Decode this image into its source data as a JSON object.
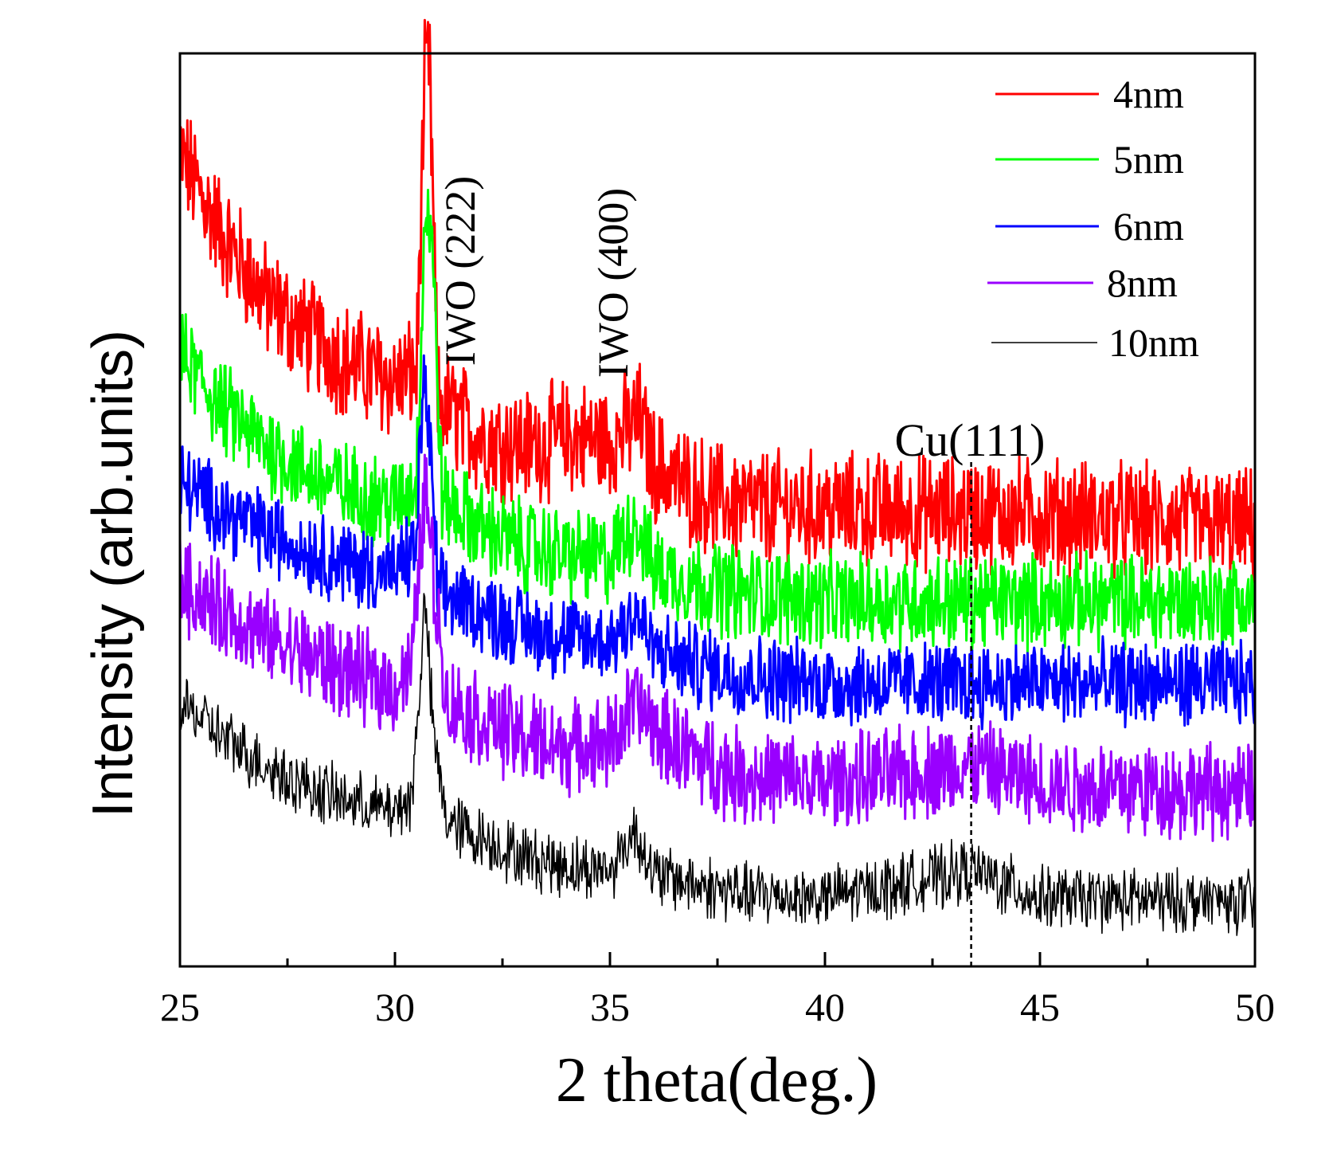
{
  "chart_data": {
    "type": "line",
    "title": "",
    "xlabel": "2 theta(deg.)",
    "ylabel": "Intensity (arb.units)",
    "xlim": [
      25,
      50
    ],
    "ylim": [
      0,
      10
    ],
    "x_ticks": [
      25,
      30,
      35,
      40,
      45,
      50
    ],
    "x_tick_labels": [
      "25",
      "30",
      "35",
      "40",
      "45",
      "50"
    ],
    "x_minor_ticks": [
      27.5,
      32.5,
      37.5,
      42.5,
      47.5
    ],
    "y_ticks_labeled": false,
    "grid": false,
    "legend_position": "top-right",
    "series": [
      {
        "name": "4nm",
        "color": "#ff0000",
        "baseline": 5.0,
        "noise": 0.55,
        "points": [
          [
            25,
            8.9
          ],
          [
            26,
            8.0
          ],
          [
            27,
            7.3
          ],
          [
            28,
            6.9
          ],
          [
            29,
            6.6
          ],
          [
            30,
            6.4
          ],
          [
            30.5,
            6.5
          ],
          [
            30.7,
            9.8
          ],
          [
            30.8,
            9.9
          ],
          [
            31,
            6.2
          ],
          [
            32,
            5.8
          ],
          [
            33,
            5.7
          ],
          [
            34,
            5.8
          ],
          [
            35,
            5.75
          ],
          [
            35.7,
            6.0
          ],
          [
            36,
            5.5
          ],
          [
            37,
            5.2
          ],
          [
            38,
            5.05
          ],
          [
            40,
            5.0
          ],
          [
            45,
            4.95
          ],
          [
            50,
            4.8
          ]
        ]
      },
      {
        "name": "5nm",
        "color": "#00ff00",
        "baseline": 4.1,
        "noise": 0.45,
        "points": [
          [
            25,
            6.7
          ],
          [
            26,
            6.1
          ],
          [
            27,
            5.7
          ],
          [
            28,
            5.4
          ],
          [
            29,
            5.2
          ],
          [
            30,
            5.05
          ],
          [
            30.5,
            5.3
          ],
          [
            30.7,
            8.3
          ],
          [
            30.85,
            8.1
          ],
          [
            31.1,
            5.1
          ],
          [
            32,
            4.8
          ],
          [
            33,
            4.6
          ],
          [
            34,
            4.5
          ],
          [
            35,
            4.45
          ],
          [
            35.6,
            4.9
          ],
          [
            36,
            4.35
          ],
          [
            37,
            4.2
          ],
          [
            38,
            4.1
          ],
          [
            40,
            4.0
          ],
          [
            45,
            4.0
          ],
          [
            50,
            4.0
          ]
        ]
      },
      {
        "name": "6nm",
        "color": "#0000ff",
        "baseline": 3.2,
        "noise": 0.4,
        "points": [
          [
            25,
            5.3
          ],
          [
            26,
            5.0
          ],
          [
            27,
            4.75
          ],
          [
            28,
            4.55
          ],
          [
            29,
            4.4
          ],
          [
            30,
            4.3
          ],
          [
            30.5,
            4.6
          ],
          [
            30.65,
            6.5
          ],
          [
            30.8,
            5.8
          ],
          [
            31,
            4.1
          ],
          [
            32,
            3.9
          ],
          [
            33,
            3.7
          ],
          [
            34,
            3.6
          ],
          [
            35,
            3.55
          ],
          [
            35.6,
            3.9
          ],
          [
            36,
            3.45
          ],
          [
            37,
            3.3
          ],
          [
            38,
            3.2
          ],
          [
            40,
            3.1
          ],
          [
            45,
            3.1
          ],
          [
            50,
            3.1
          ]
        ]
      },
      {
        "name": "8nm",
        "color": "#9900ff",
        "baseline": 2.0,
        "noise": 0.45,
        "points": [
          [
            25,
            4.2
          ],
          [
            26,
            3.9
          ],
          [
            27,
            3.6
          ],
          [
            28,
            3.4
          ],
          [
            29,
            3.2
          ],
          [
            30,
            3.05
          ],
          [
            30.4,
            3.3
          ],
          [
            30.7,
            5.3
          ],
          [
            30.95,
            4.0
          ],
          [
            31.2,
            2.9
          ],
          [
            32,
            2.7
          ],
          [
            33,
            2.5
          ],
          [
            34,
            2.4
          ],
          [
            35,
            2.45
          ],
          [
            35.6,
            2.9
          ],
          [
            36,
            2.6
          ],
          [
            37,
            2.3
          ],
          [
            38,
            2.1
          ],
          [
            40,
            2.0
          ],
          [
            43.4,
            2.2
          ],
          [
            45,
            2.0
          ],
          [
            50,
            1.9
          ]
        ]
      },
      {
        "name": "10nm",
        "color": "#000000",
        "baseline": 0.7,
        "noise": 0.3,
        "points": [
          [
            25,
            2.9
          ],
          [
            26,
            2.5
          ],
          [
            27,
            2.2
          ],
          [
            28,
            1.95
          ],
          [
            29,
            1.8
          ],
          [
            30,
            1.7
          ],
          [
            30.4,
            1.85
          ],
          [
            30.7,
            4.0
          ],
          [
            30.9,
            2.5
          ],
          [
            31.2,
            1.6
          ],
          [
            32,
            1.4
          ],
          [
            33,
            1.2
          ],
          [
            34,
            1.1
          ],
          [
            35,
            1.05
          ],
          [
            35.6,
            1.5
          ],
          [
            36,
            1.0
          ],
          [
            37,
            0.9
          ],
          [
            38,
            0.8
          ],
          [
            40,
            0.75
          ],
          [
            43.4,
            1.05
          ],
          [
            45,
            0.75
          ],
          [
            50,
            0.7
          ]
        ]
      }
    ],
    "annotations": [
      {
        "text": "IWO (222)",
        "x": 31.5,
        "orientation": "vertical"
      },
      {
        "text": "IWO (400)",
        "x": 35.0,
        "orientation": "vertical"
      },
      {
        "text": "Cu(111)",
        "x": 43.4,
        "orientation": "horizontal",
        "reference_line": "dashed"
      }
    ]
  }
}
